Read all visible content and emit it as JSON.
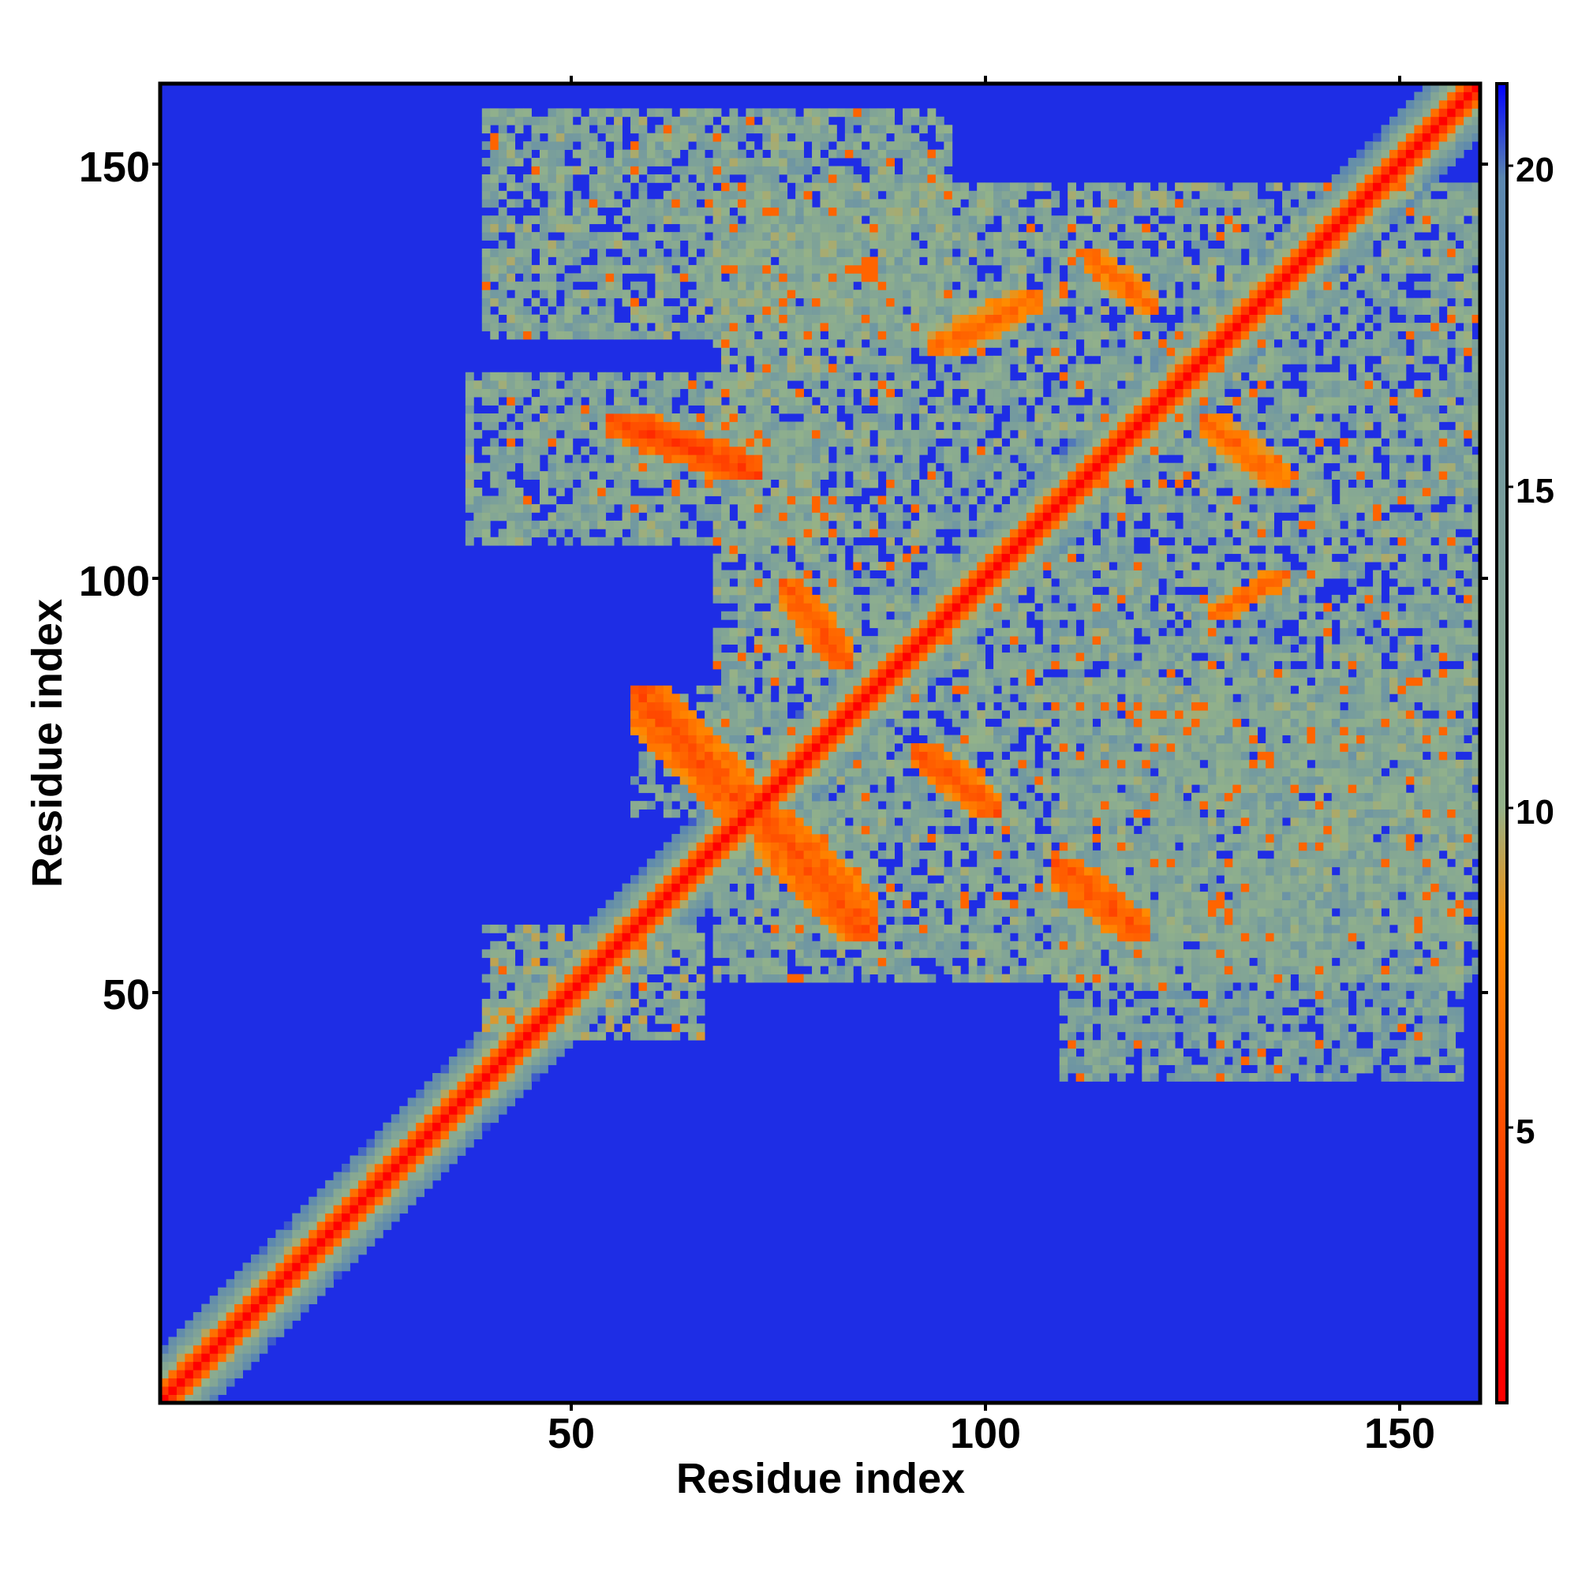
{
  "chart_data": {
    "type": "heatmap",
    "title": "",
    "xlabel": "Residue index",
    "ylabel": "Residue index",
    "xlim": [
      1,
      160
    ],
    "ylim": [
      1,
      160
    ],
    "x_ticks": [
      "50",
      "100",
      "150"
    ],
    "y_ticks": [
      "50",
      "100",
      "150"
    ],
    "colorbar": {
      "range": [
        0.5,
        21.5
      ],
      "ticks": [
        "5",
        "10",
        "15",
        "20"
      ],
      "colors": [
        "#ff0000",
        "#ff8c00",
        "#93b28a",
        "#5b87b0",
        "#0000ff"
      ],
      "stops": [
        1,
        8,
        10,
        20,
        21.5
      ]
    },
    "background_value": 21,
    "diagonal": {
      "width": 6.5,
      "max_value": 21
    },
    "regions": [
      {
        "name": "block A",
        "x": [
          55,
          73
        ],
        "y": [
          113,
          120
        ],
        "value": 4,
        "pattern": "antidiagonal-strip"
      },
      {
        "name": "block B",
        "x": [
          76,
          84
        ],
        "y": [
          90,
          100
        ],
        "value": 5,
        "pattern": "antidiagonal-strip"
      },
      {
        "name": "block C",
        "x": [
          58,
          72
        ],
        "y": [
          72,
          87
        ],
        "value": 5,
        "pattern": "antidiagonal-strip"
      },
      {
        "name": "block D",
        "x": [
          73,
          87
        ],
        "y": [
          57,
          72
        ],
        "value": 5,
        "pattern": "antidiagonal-strip"
      },
      {
        "name": "block E",
        "x": [
          92,
          102
        ],
        "y": [
          72,
          80
        ],
        "value": 5,
        "pattern": "antidiagonal-strip"
      },
      {
        "name": "block F",
        "x": [
          109,
          120
        ],
        "y": [
          57,
          66
        ],
        "value": 5,
        "pattern": "antidiagonal-strip"
      },
      {
        "name": "block G",
        "x": [
          128,
          137
        ],
        "y": [
          96,
          101
        ],
        "value": 6,
        "pattern": "diagonal-strip"
      },
      {
        "name": "block H",
        "x": [
          94,
          107
        ],
        "y": [
          128,
          135
        ],
        "value": 6,
        "pattern": "diagonal-strip"
      },
      {
        "name": "block I",
        "x": [
          113,
          121
        ],
        "y": [
          133,
          140
        ],
        "value": 6,
        "pattern": "antidiagonal-strip"
      },
      {
        "name": "block J",
        "x": [
          127,
          137
        ],
        "y": [
          112,
          120
        ],
        "value": 6,
        "pattern": "antidiagonal-strip"
      },
      {
        "name": "block K",
        "x": [
          40,
          66
        ],
        "y": [
          45,
          58
        ],
        "value": 12,
        "pattern": "cloud"
      },
      {
        "name": "block L",
        "x": [
          40,
          96
        ],
        "y": [
          130,
          157
        ],
        "value": 13,
        "pattern": "cloud"
      },
      {
        "name": "block M",
        "x": [
          38,
          80
        ],
        "y": [
          105,
          125
        ],
        "value": 13,
        "pattern": "cloud"
      },
      {
        "name": "block N",
        "x": [
          68,
          160
        ],
        "y": [
          52,
          148
        ],
        "value": 13,
        "pattern": "cloud"
      },
      {
        "name": "block O",
        "x": [
          110,
          158
        ],
        "y": [
          40,
          88
        ],
        "value": 14,
        "pattern": "cloud"
      }
    ]
  }
}
